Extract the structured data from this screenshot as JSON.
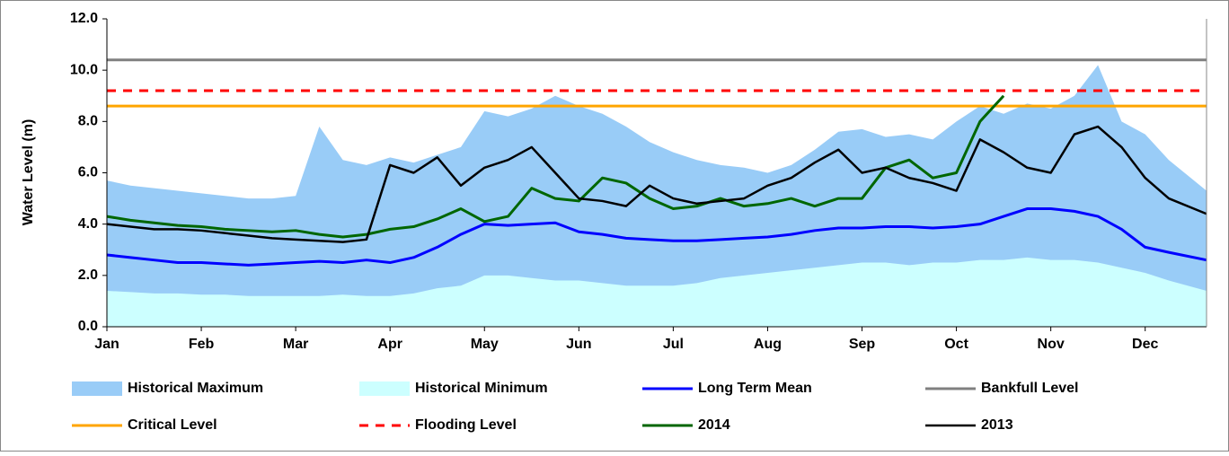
{
  "chart_data": {
    "type": "line",
    "ylabel": "Water Level (m)",
    "xlim": [
      0,
      11.65
    ],
    "xticks": [
      {
        "value": 0,
        "label": "Jan"
      },
      {
        "value": 1,
        "label": "Feb"
      },
      {
        "value": 2,
        "label": "Mar"
      },
      {
        "value": 3,
        "label": "Apr"
      },
      {
        "value": 4,
        "label": "May"
      },
      {
        "value": 5,
        "label": "Jun"
      },
      {
        "value": 6,
        "label": "Jul"
      },
      {
        "value": 7,
        "label": "Aug"
      },
      {
        "value": 8,
        "label": "Sep"
      },
      {
        "value": 9,
        "label": "Oct"
      },
      {
        "value": 10,
        "label": "Nov"
      },
      {
        "value": 11,
        "label": "Dec"
      }
    ],
    "ylim": [
      0,
      12
    ],
    "yticks": [
      {
        "value": 0,
        "label": "0.0"
      },
      {
        "value": 2,
        "label": "2.0"
      },
      {
        "value": 4,
        "label": "4.0"
      },
      {
        "value": 6,
        "label": "6.0"
      },
      {
        "value": 8,
        "label": "8.0"
      },
      {
        "value": 10,
        "label": "10.0"
      },
      {
        "value": 12,
        "label": "12.0"
      }
    ],
    "x": [
      0,
      0.25,
      0.5,
      0.75,
      1,
      1.25,
      1.5,
      1.75,
      2,
      2.25,
      2.5,
      2.75,
      3,
      3.25,
      3.5,
      3.75,
      4,
      4.25,
      4.5,
      4.75,
      5,
      5.25,
      5.5,
      5.75,
      6,
      6.25,
      6.5,
      6.75,
      7,
      7.25,
      7.5,
      7.75,
      8,
      8.25,
      8.5,
      8.75,
      9,
      9.25,
      9.5,
      9.75,
      10,
      10.25,
      10.5,
      10.75,
      11,
      11.25,
      11.65
    ],
    "series": [
      {
        "name": "Historical Maximum",
        "kind": "area",
        "color": "#99ccf7",
        "values": [
          5.7,
          5.5,
          5.4,
          5.3,
          5.2,
          5.1,
          5.0,
          5.0,
          5.1,
          7.8,
          6.5,
          6.3,
          6.6,
          6.4,
          6.7,
          7.0,
          8.4,
          8.2,
          8.5,
          9.0,
          8.6,
          8.3,
          7.8,
          7.2,
          6.8,
          6.5,
          6.3,
          6.2,
          6.0,
          6.3,
          6.9,
          7.6,
          7.7,
          7.4,
          7.5,
          7.3,
          8.0,
          8.6,
          8.3,
          8.7,
          8.5,
          9.0,
          10.2,
          8.0,
          7.5,
          6.5,
          5.3
        ]
      },
      {
        "name": "Historical Minimum",
        "kind": "area",
        "color": "#ccffff",
        "values": [
          1.4,
          1.35,
          1.3,
          1.3,
          1.25,
          1.25,
          1.2,
          1.2,
          1.2,
          1.2,
          1.25,
          1.2,
          1.2,
          1.3,
          1.5,
          1.6,
          2.0,
          2.0,
          1.9,
          1.8,
          1.8,
          1.7,
          1.6,
          1.6,
          1.6,
          1.7,
          1.9,
          2.0,
          2.1,
          2.2,
          2.3,
          2.4,
          2.5,
          2.5,
          2.4,
          2.5,
          2.5,
          2.6,
          2.6,
          2.7,
          2.6,
          2.6,
          2.5,
          2.3,
          2.1,
          1.8,
          1.4
        ]
      },
      {
        "name": "Long Term Mean",
        "kind": "line",
        "color": "#0000ff",
        "width": 3,
        "values": [
          2.8,
          2.7,
          2.6,
          2.5,
          2.5,
          2.45,
          2.4,
          2.45,
          2.5,
          2.55,
          2.5,
          2.6,
          2.5,
          2.7,
          3.1,
          3.6,
          4.0,
          3.95,
          4.0,
          4.05,
          3.7,
          3.6,
          3.45,
          3.4,
          3.35,
          3.35,
          3.4,
          3.45,
          3.5,
          3.6,
          3.75,
          3.85,
          3.85,
          3.9,
          3.9,
          3.85,
          3.9,
          4.0,
          4.3,
          4.6,
          4.6,
          4.5,
          4.3,
          3.8,
          3.1,
          2.9,
          2.6
        ]
      },
      {
        "name": "Bankfull Level",
        "kind": "hline",
        "color": "#808080",
        "width": 3,
        "value": 10.4
      },
      {
        "name": "Critical Level",
        "kind": "hline",
        "color": "#ffa500",
        "width": 3,
        "value": 8.6
      },
      {
        "name": "Flooding Level",
        "kind": "hline",
        "color": "#ff0000",
        "width": 3,
        "dashed": true,
        "value": 9.2
      },
      {
        "name": "2014",
        "kind": "line",
        "color": "#006600",
        "width": 3,
        "values": [
          4.3,
          4.15,
          4.05,
          3.95,
          3.9,
          3.8,
          3.75,
          3.7,
          3.75,
          3.6,
          3.5,
          3.6,
          3.8,
          3.9,
          4.2,
          4.6,
          4.1,
          4.3,
          5.4,
          5.0,
          4.9,
          5.8,
          5.6,
          5.0,
          4.6,
          4.7,
          5.0,
          4.7,
          4.8,
          5.0,
          4.7,
          5.0,
          5.0,
          6.2,
          6.5,
          5.8,
          6.0,
          8.0,
          9.0,
          null,
          null,
          null,
          null,
          null,
          null,
          null,
          null
        ]
      },
      {
        "name": "2013",
        "kind": "line",
        "color": "#000000",
        "width": 2.5,
        "values": [
          4.0,
          3.9,
          3.8,
          3.8,
          3.75,
          3.65,
          3.55,
          3.45,
          3.4,
          3.35,
          3.3,
          3.4,
          6.3,
          6.0,
          6.6,
          5.5,
          6.2,
          6.5,
          7.0,
          6.0,
          5.0,
          4.9,
          4.7,
          5.5,
          5.0,
          4.8,
          4.9,
          5.0,
          5.5,
          5.8,
          6.4,
          6.9,
          6.0,
          6.2,
          5.8,
          5.6,
          5.3,
          7.3,
          6.8,
          6.2,
          6.0,
          7.5,
          7.8,
          7.0,
          5.8,
          5.0,
          4.4
        ]
      }
    ]
  }
}
